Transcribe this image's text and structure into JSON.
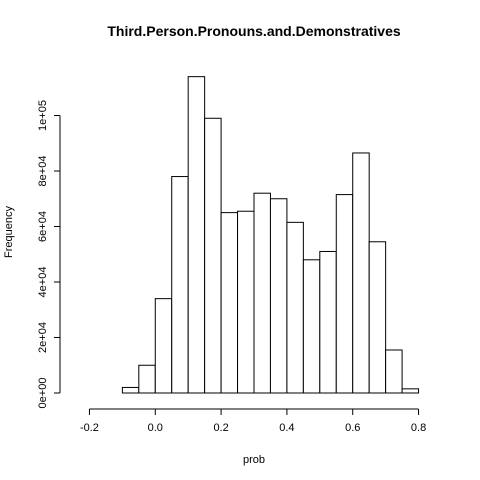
{
  "chart_data": {
    "type": "histogram",
    "title": "Third.Person.Pronouns.and.Demonstratives",
    "xlabel": "prob",
    "ylabel": "Frequency",
    "bin_edges": [
      -0.1,
      -0.05,
      0.0,
      0.05,
      0.1,
      0.15,
      0.2,
      0.25,
      0.3,
      0.35,
      0.4,
      0.45,
      0.5,
      0.55,
      0.6,
      0.65,
      0.7,
      0.75,
      0.8
    ],
    "values": [
      2000,
      10000,
      34000,
      78000,
      114000,
      99000,
      65000,
      65500,
      72000,
      70000,
      61500,
      48000,
      51000,
      71500,
      86500,
      54500,
      15500,
      1500
    ],
    "xlim": [
      -0.25,
      0.85
    ],
    "ylim": [
      0,
      120000
    ],
    "x_ticks": [
      {
        "value": -0.2,
        "label": "-0.2"
      },
      {
        "value": 0.0,
        "label": "0.0"
      },
      {
        "value": 0.2,
        "label": "0.2"
      },
      {
        "value": 0.4,
        "label": "0.4"
      },
      {
        "value": 0.6,
        "label": "0.6"
      },
      {
        "value": 0.8,
        "label": "0.8"
      }
    ],
    "y_ticks": [
      {
        "value": 0,
        "label": "0e+00"
      },
      {
        "value": 20000,
        "label": "2e+04"
      },
      {
        "value": 40000,
        "label": "4e+04"
      },
      {
        "value": 60000,
        "label": "6e+04"
      },
      {
        "value": 80000,
        "label": "8e+04"
      },
      {
        "value": 100000,
        "label": "1e+05"
      }
    ],
    "bar_fill": "#ffffff",
    "bar_stroke": "#000000",
    "grid": false,
    "legend": "none"
  }
}
